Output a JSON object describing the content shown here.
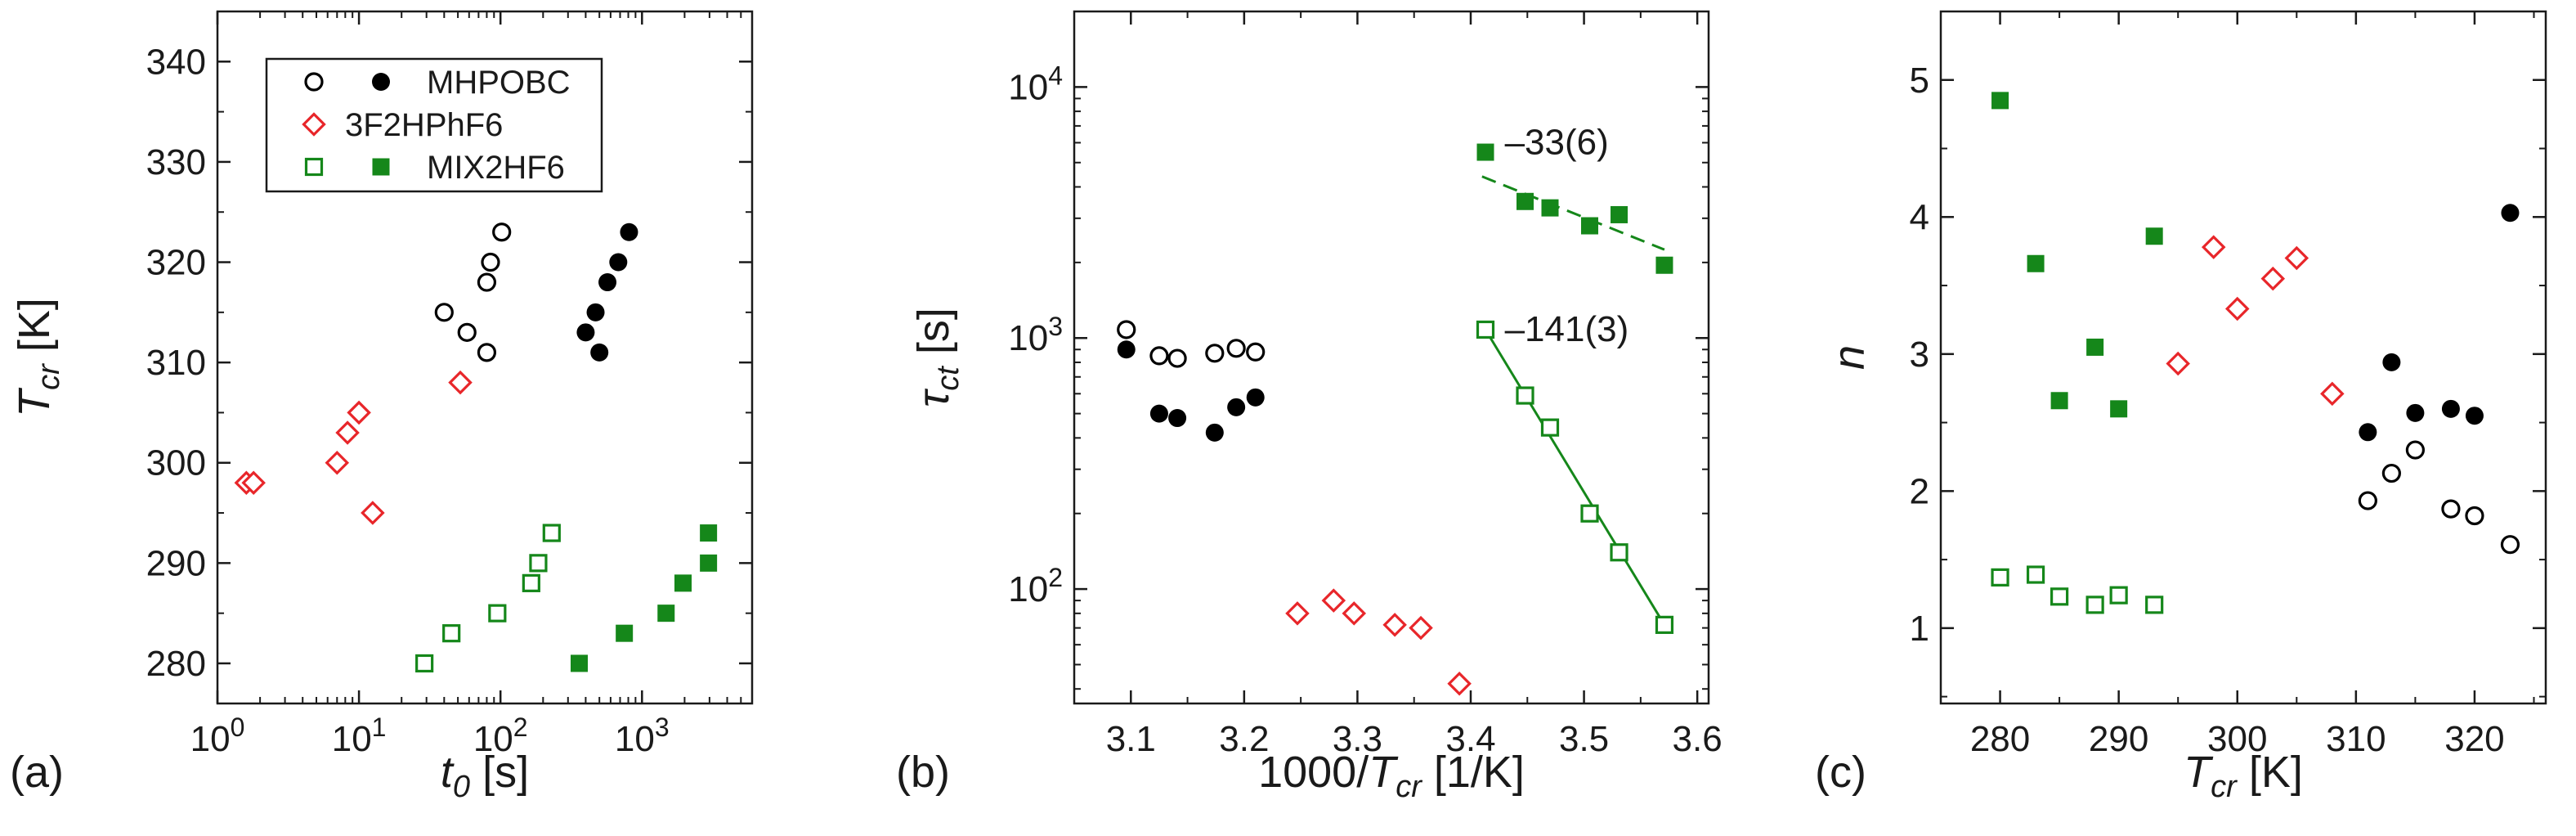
{
  "colors": {
    "black": "#000000",
    "red": "#e8262a",
    "green": "#15871a",
    "frame": "#1a1a1a"
  },
  "chart_data": [
    {
      "type": "scatter",
      "panel_label": "(a)",
      "x_scale": "log",
      "xlim": [
        1,
        6000
      ],
      "ylim": [
        276,
        345
      ],
      "xticks": [
        1,
        10,
        100,
        1000
      ],
      "xtick_labels": [
        [
          "10",
          "0"
        ],
        [
          "10",
          "1"
        ],
        [
          "10",
          "2"
        ],
        [
          "10",
          "3"
        ]
      ],
      "yticks": [
        280,
        290,
        300,
        310,
        320,
        330,
        340
      ],
      "ytick_labels": [
        "280",
        "290",
        "300",
        "310",
        "320",
        "330",
        "340"
      ],
      "xlabel": {
        "main": "t",
        "sub": "0",
        "unit": " [s]"
      },
      "ylabel": {
        "main": "T",
        "sub": "cr",
        "unit": " [K]"
      },
      "legend": [
        {
          "open_marker": "circle",
          "filled_marker": "circle",
          "color": "black",
          "label": "MHPOBC"
        },
        {
          "open_marker": "diamond",
          "filled_marker": null,
          "color": "red",
          "label": "3F2HPhF6"
        },
        {
          "open_marker": "square",
          "filled_marker": "square",
          "color": "green",
          "label": "MIX2HF6"
        }
      ],
      "series": [
        {
          "name": "MHPOBC open",
          "marker": "circle",
          "filled": false,
          "color": "black",
          "points": [
            [
              40,
              315
            ],
            [
              58,
              313
            ],
            [
              80,
              311
            ],
            [
              80,
              318
            ],
            [
              85,
              320
            ],
            [
              102,
              323
            ]
          ]
        },
        {
          "name": "MHPOBC filled",
          "marker": "circle",
          "filled": true,
          "color": "black",
          "points": [
            [
              400,
              313
            ],
            [
              470,
              315
            ],
            [
              500,
              311
            ],
            [
              570,
              318
            ],
            [
              680,
              320
            ],
            [
              810,
              323
            ]
          ]
        },
        {
          "name": "3F2HPhF6",
          "marker": "diamond",
          "filled": false,
          "color": "red",
          "points": [
            [
              1.6,
              298
            ],
            [
              1.8,
              298
            ],
            [
              7,
              300
            ],
            [
              8.3,
              303
            ],
            [
              10,
              305
            ],
            [
              12.5,
              295
            ],
            [
              52,
              308
            ]
          ]
        },
        {
          "name": "MIX2HF6 open",
          "marker": "square",
          "filled": false,
          "color": "green",
          "points": [
            [
              29,
              280
            ],
            [
              45,
              283
            ],
            [
              95,
              285
            ],
            [
              165,
              288
            ],
            [
              185,
              290
            ],
            [
              230,
              293
            ]
          ]
        },
        {
          "name": "MIX2HF6 filled",
          "marker": "square",
          "filled": true,
          "color": "green",
          "points": [
            [
              360,
              280
            ],
            [
              750,
              283
            ],
            [
              1480,
              285
            ],
            [
              1950,
              288
            ],
            [
              2950,
              290
            ],
            [
              2950,
              293
            ]
          ]
        }
      ],
      "fit_lines": [],
      "annotations": []
    },
    {
      "type": "scatter",
      "panel_label": "(b)",
      "x_scale": "linear",
      "y_scale": "log",
      "xlim": [
        3.05,
        3.61
      ],
      "ylim": [
        35,
        20000
      ],
      "xticks": [
        3.1,
        3.2,
        3.3,
        3.4,
        3.5,
        3.6
      ],
      "xtick_labels": [
        "3.1",
        "3.2",
        "3.3",
        "3.4",
        "3.5",
        "3.6"
      ],
      "yticks": [
        100,
        1000,
        10000
      ],
      "ytick_labels": [
        [
          "10",
          "2"
        ],
        [
          "10",
          "3"
        ],
        [
          "10",
          "4"
        ]
      ],
      "xlabel": {
        "main": "1000/",
        "italic": "T",
        "sub": "cr",
        "unit": " [1/K]"
      },
      "ylabel": {
        "main": "τ",
        "sub": "ct",
        "unit": " [s]"
      },
      "series": [
        {
          "name": "MHPOBC open",
          "marker": "circle",
          "filled": false,
          "color": "black",
          "points": [
            [
              3.096,
              1080
            ],
            [
              3.125,
              850
            ],
            [
              3.141,
              830
            ],
            [
              3.174,
              870
            ],
            [
              3.193,
              910
            ],
            [
              3.21,
              880
            ]
          ]
        },
        {
          "name": "MHPOBC filled",
          "marker": "circle",
          "filled": true,
          "color": "black",
          "points": [
            [
              3.096,
              900
            ],
            [
              3.125,
              500
            ],
            [
              3.141,
              480
            ],
            [
              3.174,
              420
            ],
            [
              3.193,
              530
            ],
            [
              3.21,
              580
            ]
          ]
        },
        {
          "name": "3F2HPhF6",
          "marker": "diamond",
          "filled": false,
          "color": "red",
          "points": [
            [
              3.247,
              80
            ],
            [
              3.279,
              90
            ],
            [
              3.297,
              80
            ],
            [
              3.333,
              72
            ],
            [
              3.356,
              70
            ],
            [
              3.39,
              42
            ]
          ]
        },
        {
          "name": "MIX2HF6 open",
          "marker": "square",
          "filled": false,
          "color": "green",
          "points": [
            [
              3.413,
              1080
            ],
            [
              3.448,
              590
            ],
            [
              3.47,
              440
            ],
            [
              3.505,
              200
            ],
            [
              3.531,
              140
            ],
            [
              3.571,
              72
            ]
          ]
        },
        {
          "name": "MIX2HF6 filled",
          "marker": "square",
          "filled": true,
          "color": "green",
          "points": [
            [
              3.413,
              5500
            ],
            [
              3.448,
              3500
            ],
            [
              3.47,
              3300
            ],
            [
              3.505,
              2800
            ],
            [
              3.531,
              3100
            ],
            [
              3.571,
              1950
            ]
          ]
        }
      ],
      "fit_lines": [
        {
          "color": "green",
          "dashed": true,
          "from": [
            3.41,
            4400
          ],
          "to": [
            3.571,
            2250
          ]
        },
        {
          "color": "green",
          "dashed": false,
          "from": [
            3.413,
            1080
          ],
          "to": [
            3.571,
            72
          ]
        }
      ],
      "annotations": [
        {
          "text": "–33(6)",
          "x": 3.43,
          "y": 6000
        },
        {
          "text": "–141(3)",
          "x": 3.43,
          "y": 1080
        }
      ]
    },
    {
      "type": "scatter",
      "panel_label": "(c)",
      "x_scale": "linear",
      "xlim": [
        275,
        326
      ],
      "ylim": [
        0.45,
        5.5
      ],
      "xticks": [
        280,
        290,
        300,
        310,
        320
      ],
      "xtick_labels": [
        "280",
        "290",
        "300",
        "310",
        "320"
      ],
      "yticks": [
        1,
        2,
        3,
        4,
        5
      ],
      "ytick_labels": [
        "1",
        "2",
        "3",
        "4",
        "5"
      ],
      "xlabel": {
        "main": "T",
        "sub": "cr",
        "unit": " [K]"
      },
      "ylabel": {
        "main": "n",
        "sub": "",
        "unit": ""
      },
      "series": [
        {
          "name": "MHPOBC open",
          "marker": "circle",
          "filled": false,
          "color": "black",
          "points": [
            [
              311,
              1.93
            ],
            [
              313,
              2.13
            ],
            [
              315,
              2.3
            ],
            [
              318,
              1.87
            ],
            [
              320,
              1.82
            ],
            [
              323,
              1.61
            ]
          ]
        },
        {
          "name": "MHPOBC filled",
          "marker": "circle",
          "filled": true,
          "color": "black",
          "points": [
            [
              311,
              2.43
            ],
            [
              313,
              2.94
            ],
            [
              315,
              2.57
            ],
            [
              318,
              2.6
            ],
            [
              320,
              2.55
            ],
            [
              323,
              4.03
            ]
          ]
        },
        {
          "name": "3F2HPhF6",
          "marker": "diamond",
          "filled": false,
          "color": "red",
          "points": [
            [
              295,
              2.93
            ],
            [
              298,
              3.78
            ],
            [
              300,
              3.33
            ],
            [
              303,
              3.55
            ],
            [
              305,
              3.7
            ],
            [
              308,
              2.71
            ]
          ]
        },
        {
          "name": "MIX2HF6 open",
          "marker": "square",
          "filled": false,
          "color": "green",
          "points": [
            [
              280,
              1.37
            ],
            [
              283,
              1.39
            ],
            [
              285,
              1.23
            ],
            [
              288,
              1.17
            ],
            [
              290,
              1.24
            ],
            [
              293,
              1.17
            ]
          ]
        },
        {
          "name": "MIX2HF6 filled",
          "marker": "square",
          "filled": true,
          "color": "green",
          "points": [
            [
              280,
              4.85
            ],
            [
              283,
              3.66
            ],
            [
              285,
              2.66
            ],
            [
              288,
              3.05
            ],
            [
              290,
              2.6
            ],
            [
              293,
              3.86
            ]
          ]
        }
      ],
      "fit_lines": [],
      "annotations": []
    }
  ]
}
